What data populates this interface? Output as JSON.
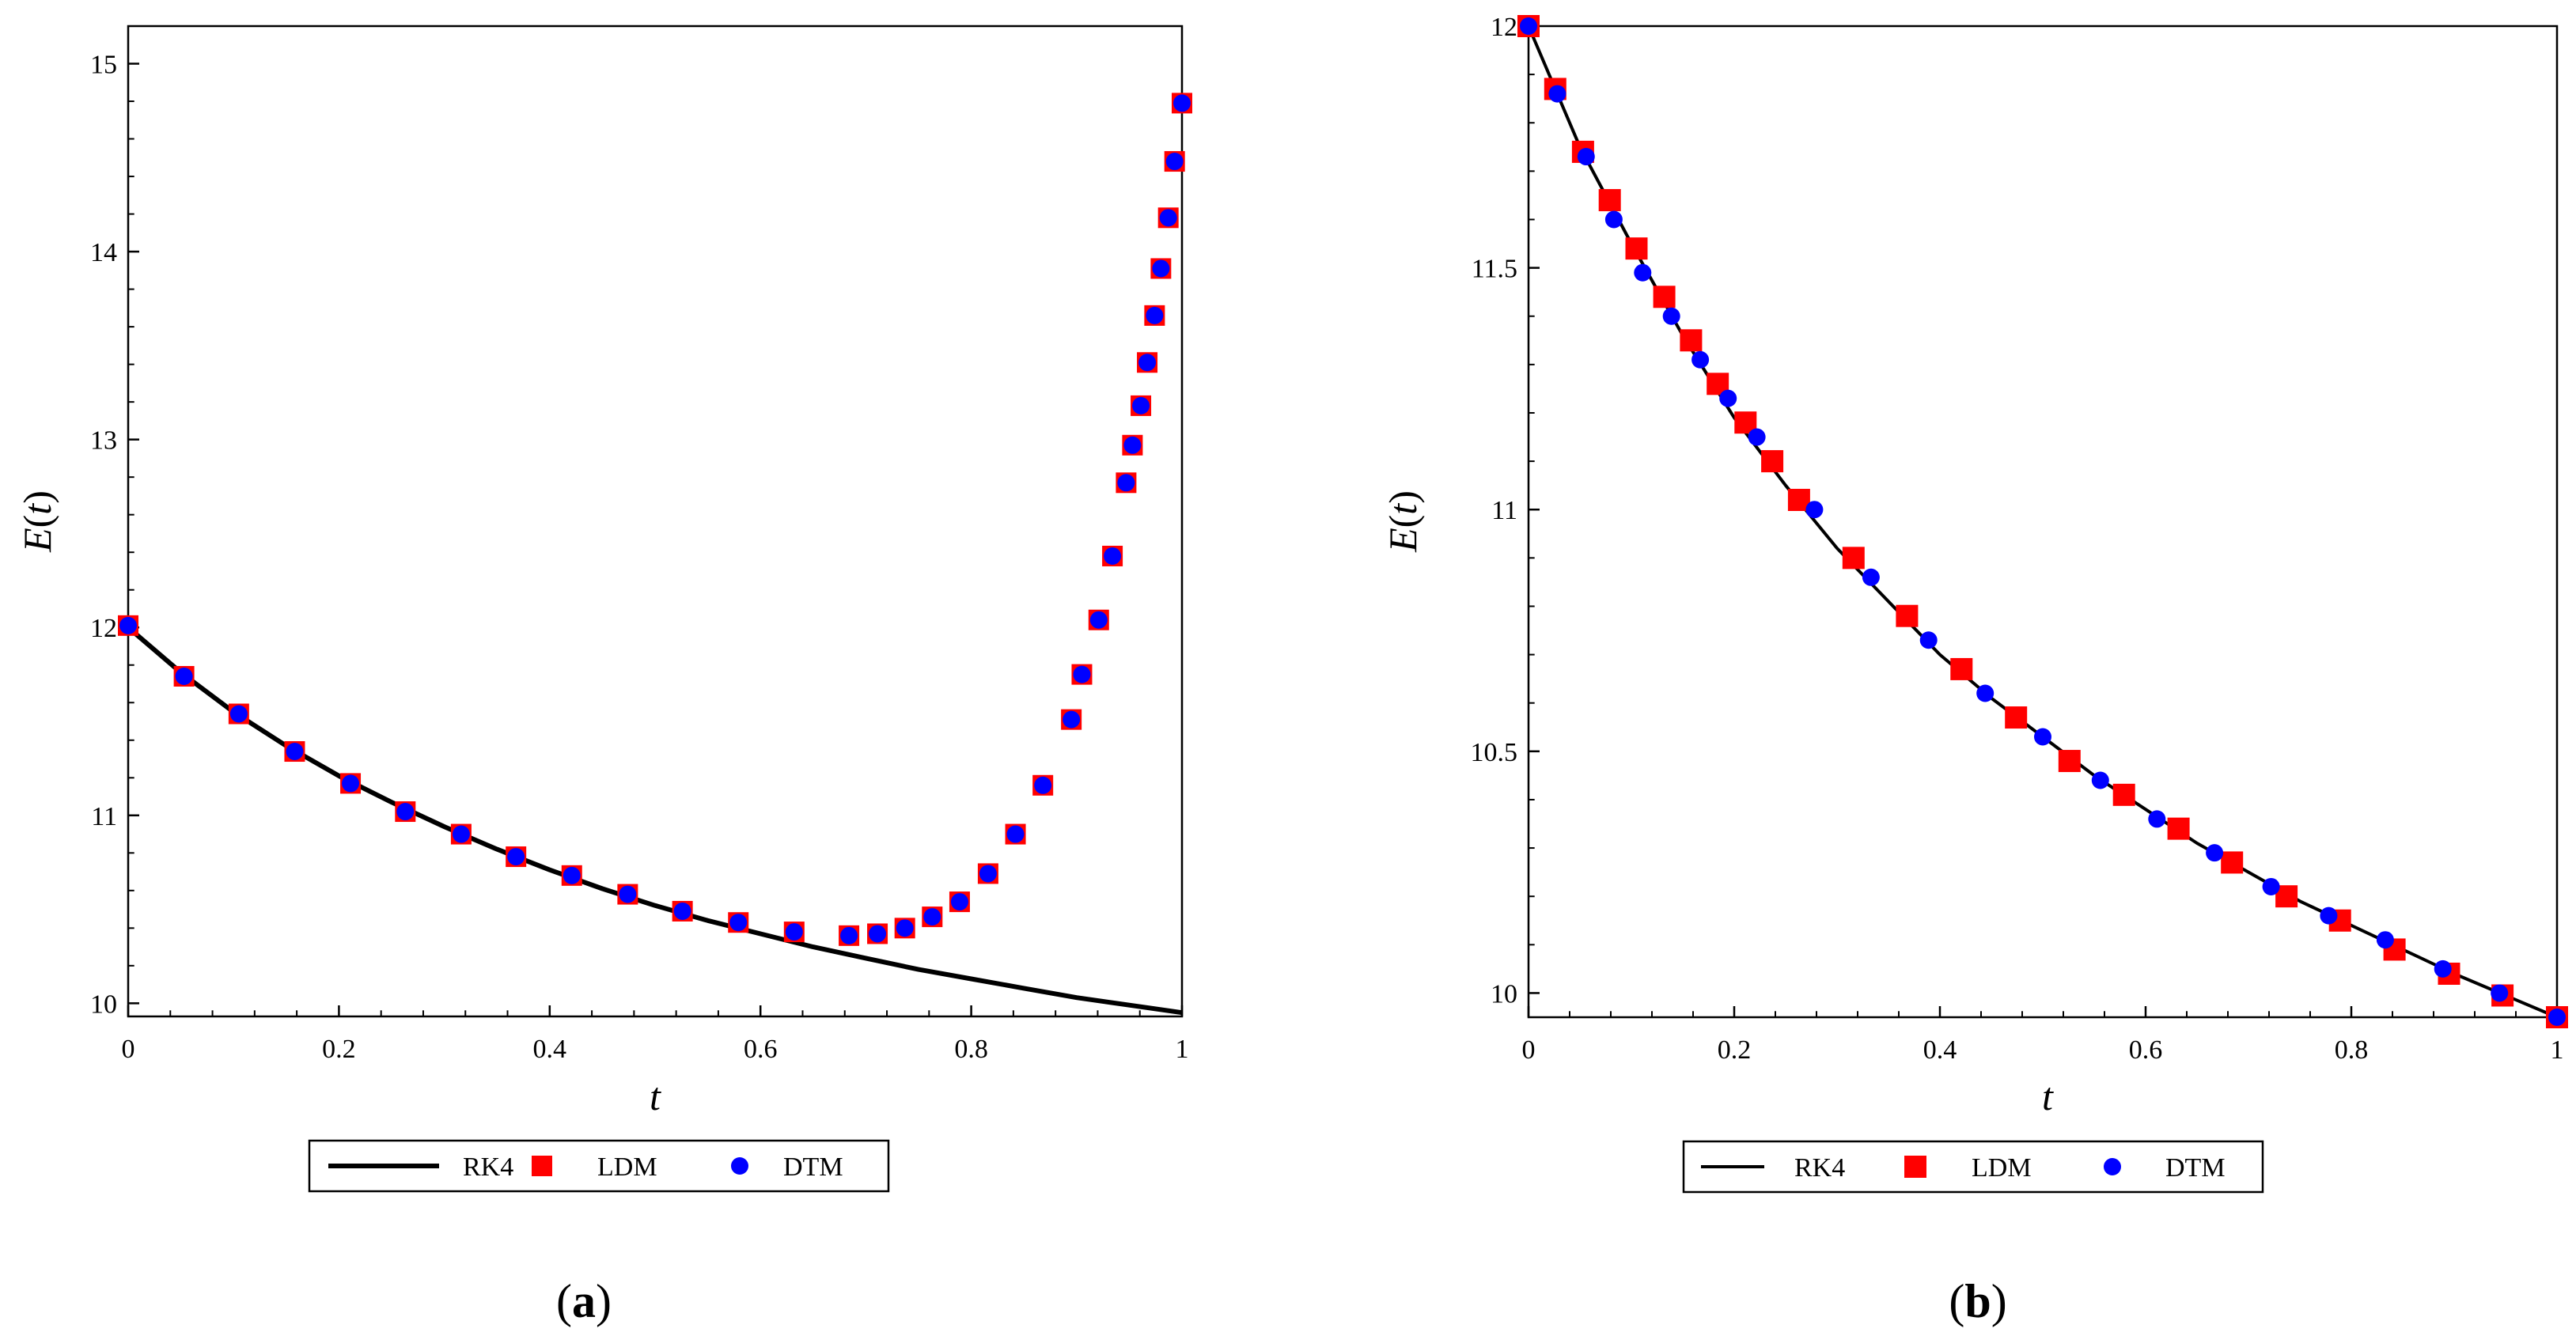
{
  "colors": {
    "rk4": "#000000",
    "ldm": "#ff0000",
    "dtm": "#0000ff",
    "axis": "#000000"
  },
  "chart_data": [
    {
      "type": "line",
      "panel": "a",
      "panel_label": {
        "open": "(",
        "letter": "a",
        "close": ")"
      },
      "xlabel": "t",
      "ylabel": {
        "name": "E",
        "open": "(",
        "var": "t",
        "close": ")"
      },
      "xlim": [
        0,
        1
      ],
      "ylim": [
        9.93,
        15.2
      ],
      "xticks": [
        0,
        0.2,
        0.4,
        0.6,
        0.8,
        1
      ],
      "xtick_labels": [
        "0",
        "0.2",
        "0.4",
        "0.6",
        "0.8",
        "1"
      ],
      "yticks": [
        10,
        11,
        12,
        13,
        14,
        15
      ],
      "ytick_labels": [
        "10",
        "11",
        "12",
        "13",
        "14",
        "15"
      ],
      "legend": {
        "placement": "bottom-center",
        "entries": [
          "RK4",
          "LDM",
          "DTM"
        ]
      },
      "series": [
        {
          "name": "RK4",
          "style": "line",
          "x": [
            0,
            0.05,
            0.1,
            0.15,
            0.2,
            0.25,
            0.3,
            0.35,
            0.4,
            0.45,
            0.5,
            0.55,
            0.6,
            0.65,
            0.7,
            0.75,
            0.8,
            0.85,
            0.9,
            0.95,
            1.0
          ],
          "y": [
            12.0,
            11.76,
            11.55,
            11.37,
            11.21,
            11.07,
            10.94,
            10.82,
            10.71,
            10.61,
            10.52,
            10.44,
            10.37,
            10.3,
            10.24,
            10.18,
            10.13,
            10.08,
            10.03,
            9.99,
            9.95
          ]
        },
        {
          "name": "LDM",
          "style": "square",
          "x": [
            0,
            0.053,
            0.105,
            0.158,
            0.211,
            0.263,
            0.316,
            0.368,
            0.421,
            0.474,
            0.526,
            0.579,
            0.632,
            0.684,
            0.711,
            0.737,
            0.763,
            0.789,
            0.816,
            0.842,
            0.868,
            0.895,
            0.905,
            0.921,
            0.934,
            0.947,
            0.953,
            0.961,
            0.967,
            0.974,
            0.98,
            0.987,
            0.993,
            1.0
          ],
          "y": [
            12.01,
            11.74,
            11.54,
            11.34,
            11.17,
            11.02,
            10.9,
            10.78,
            10.68,
            10.58,
            10.49,
            10.43,
            10.38,
            10.36,
            10.37,
            10.4,
            10.46,
            10.54,
            10.69,
            10.9,
            11.16,
            11.51,
            11.75,
            12.04,
            12.38,
            12.77,
            12.97,
            13.18,
            13.41,
            13.66,
            13.91,
            14.18,
            14.48,
            14.79
          ]
        },
        {
          "name": "DTM",
          "style": "circle",
          "x": [
            0,
            0.053,
            0.105,
            0.158,
            0.211,
            0.263,
            0.316,
            0.368,
            0.421,
            0.474,
            0.526,
            0.579,
            0.632,
            0.684,
            0.711,
            0.737,
            0.763,
            0.789,
            0.816,
            0.842,
            0.868,
            0.895,
            0.905,
            0.921,
            0.934,
            0.947,
            0.953,
            0.961,
            0.967,
            0.974,
            0.98,
            0.987,
            0.993,
            1.0
          ],
          "y": [
            12.01,
            11.74,
            11.54,
            11.34,
            11.17,
            11.02,
            10.9,
            10.78,
            10.68,
            10.58,
            10.49,
            10.43,
            10.38,
            10.36,
            10.37,
            10.4,
            10.46,
            10.54,
            10.69,
            10.9,
            11.16,
            11.51,
            11.75,
            12.04,
            12.38,
            12.77,
            12.97,
            13.18,
            13.41,
            13.66,
            13.91,
            14.18,
            14.48,
            14.79
          ]
        }
      ]
    },
    {
      "type": "line",
      "panel": "b",
      "panel_label": {
        "open": "(",
        "letter": "b",
        "close": ")"
      },
      "xlabel": "t",
      "ylabel": {
        "name": "E",
        "open": "(",
        "var": "t",
        "close": ")"
      },
      "xlim": [
        0,
        1
      ],
      "ylim": [
        9.95,
        12.0
      ],
      "xticks": [
        0,
        0.2,
        0.4,
        0.6,
        0.8,
        1
      ],
      "xtick_labels": [
        "0",
        "0.2",
        "0.4",
        "0.6",
        "0.8",
        "1"
      ],
      "yticks": [
        10,
        10.5,
        11,
        11.5,
        12
      ],
      "ytick_labels": [
        "10",
        "10.5",
        "11",
        "11.5",
        "12"
      ],
      "legend": {
        "placement": "bottom-center",
        "entries": [
          "RK4",
          "LDM",
          "DTM"
        ]
      },
      "series": [
        {
          "name": "RK4",
          "style": "line",
          "x": [
            0,
            0.05,
            0.1,
            0.15,
            0.2,
            0.25,
            0.3,
            0.35,
            0.4,
            0.45,
            0.5,
            0.55,
            0.6,
            0.65,
            0.7,
            0.75,
            0.8,
            0.85,
            0.9,
            0.95,
            1.0
          ],
          "y": [
            12.0,
            11.75,
            11.55,
            11.36,
            11.19,
            11.05,
            10.92,
            10.81,
            10.7,
            10.61,
            10.53,
            10.45,
            10.38,
            10.31,
            10.25,
            10.19,
            10.14,
            10.09,
            10.04,
            9.995,
            9.95
          ]
        },
        {
          "name": "LDM",
          "style": "square",
          "x": [
            0,
            0.026,
            0.053,
            0.079,
            0.105,
            0.132,
            0.158,
            0.184,
            0.211,
            0.237,
            0.263,
            0.316,
            0.368,
            0.421,
            0.474,
            0.526,
            0.579,
            0.632,
            0.684,
            0.737,
            0.789,
            0.842,
            0.895,
            0.947,
            1.0
          ],
          "y": [
            12.0,
            11.87,
            11.74,
            11.64,
            11.54,
            11.44,
            11.35,
            11.26,
            11.18,
            11.1,
            11.02,
            10.9,
            10.78,
            10.67,
            10.57,
            10.48,
            10.41,
            10.34,
            10.27,
            10.2,
            10.15,
            10.09,
            10.04,
            9.995,
            9.95
          ]
        },
        {
          "name": "DTM",
          "style": "circle",
          "x": [
            0,
            0.028,
            0.056,
            0.083,
            0.111,
            0.139,
            0.167,
            0.194,
            0.222,
            0.278,
            0.333,
            0.389,
            0.444,
            0.5,
            0.556,
            0.611,
            0.667,
            0.722,
            0.778,
            0.833,
            0.889,
            0.944,
            1.0
          ],
          "y": [
            12.0,
            11.86,
            11.73,
            11.6,
            11.49,
            11.4,
            11.31,
            11.23,
            11.15,
            11.0,
            10.86,
            10.73,
            10.62,
            10.53,
            10.44,
            10.36,
            10.29,
            10.22,
            10.16,
            10.11,
            10.05,
            10.0,
            9.95
          ]
        }
      ]
    }
  ]
}
